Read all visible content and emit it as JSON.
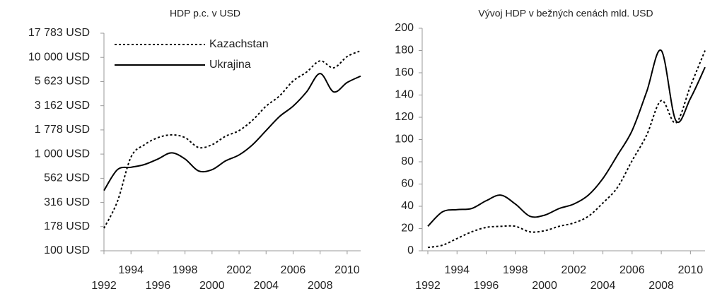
{
  "chart_data": [
    {
      "type": "line",
      "title": "HDP p.c. v USD",
      "log_scale": true,
      "legend": "upper left",
      "x": [
        1992,
        1993,
        1994,
        1995,
        1996,
        1997,
        1998,
        1999,
        2000,
        2001,
        2002,
        2003,
        2004,
        2005,
        2006,
        2007,
        2008,
        2009,
        2010,
        2011
      ],
      "xlim": [
        1992,
        2011
      ],
      "xticks": [
        1992,
        1994,
        1996,
        1998,
        2000,
        2002,
        2004,
        2006,
        2008,
        2010
      ],
      "ylim": [
        100,
        17783
      ],
      "yticks": [
        {
          "value": 100,
          "label": "100 USD"
        },
        {
          "value": 178,
          "label": "178 USD"
        },
        {
          "value": 316,
          "label": "316 USD"
        },
        {
          "value": 562,
          "label": "562 USD"
        },
        {
          "value": 1000,
          "label": "1 000 USD"
        },
        {
          "value": 1778,
          "label": "1 778 USD"
        },
        {
          "value": 3162,
          "label": "3 162 USD"
        },
        {
          "value": 5623,
          "label": "5 623 USD"
        },
        {
          "value": 10000,
          "label": "10 000 USD"
        },
        {
          "value": 17783,
          "label": "17 783 USD"
        }
      ],
      "series": [
        {
          "name": "Kazachstan",
          "color": "#000000",
          "dash": "dotted",
          "values": [
            171,
            325,
            930,
            1250,
            1480,
            1580,
            1480,
            1170,
            1250,
            1530,
            1750,
            2240,
            3130,
            4000,
            5700,
            7050,
            9200,
            7800,
            10200,
            11700
          ]
        },
        {
          "name": "Ukrajina",
          "color": "#000000",
          "dash": "solid",
          "values": [
            420,
            690,
            730,
            780,
            890,
            1030,
            890,
            670,
            690,
            850,
            980,
            1250,
            1750,
            2450,
            3130,
            4400,
            6800,
            4400,
            5500,
            6400
          ]
        }
      ]
    },
    {
      "type": "line",
      "title": "Vývoj HDP v bežných cenách mld. USD",
      "log_scale": false,
      "x": [
        1992,
        1993,
        1994,
        1995,
        1996,
        1997,
        1998,
        1999,
        2000,
        2001,
        2002,
        2003,
        2004,
        2005,
        2006,
        2007,
        2008,
        2009,
        2010,
        2011
      ],
      "xlim": [
        1992,
        2011
      ],
      "xticks": [
        1992,
        1994,
        1996,
        1998,
        2000,
        2002,
        2004,
        2006,
        2008,
        2010
      ],
      "ylim": [
        0,
        200
      ],
      "yticks": [
        0,
        20,
        40,
        60,
        80,
        100,
        120,
        140,
        160,
        180,
        200
      ],
      "series": [
        {
          "color": "#000000",
          "dash": "dotted",
          "values": [
            3,
            5,
            11,
            17,
            21,
            22,
            22,
            17,
            18,
            22,
            25,
            31,
            43,
            57,
            81,
            104,
            135,
            115,
            148,
            180
          ]
        },
        {
          "color": "#000000",
          "dash": "solid",
          "values": [
            22,
            35,
            37,
            38,
            45,
            50,
            42,
            31,
            32,
            38,
            42,
            50,
            65,
            86,
            108,
            143,
            180,
            117,
            137,
            165
          ]
        }
      ]
    }
  ]
}
